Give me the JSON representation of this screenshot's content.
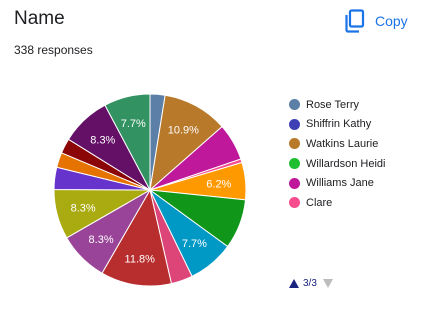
{
  "header": {
    "title": "Name",
    "responses": "338 responses",
    "copy_label": "Copy"
  },
  "legend": {
    "items": [
      {
        "label": "Rose Terry",
        "color": "#5b7fa6"
      },
      {
        "label": "Shiffrin Kathy",
        "color": "#3f3fb5"
      },
      {
        "label": "Watkins Laurie",
        "color": "#b8792a"
      },
      {
        "label": "Willardson Heidi",
        "color": "#1fbf2f"
      },
      {
        "label": "Williams Jane",
        "color": "#c0189a"
      },
      {
        "label": "Clare",
        "color": "#f74d8f"
      }
    ],
    "page_label": "3/3"
  },
  "chart_data": {
    "type": "pie",
    "slices": [
      {
        "value": 2.5,
        "color": "#5b7fa6"
      },
      {
        "value": 10.9,
        "label": "10.9%",
        "color": "#b8792a"
      },
      {
        "value": 6.2,
        "color": "#c0189a"
      },
      {
        "value": 0.6,
        "color": "#f74d8f"
      },
      {
        "value": 6.2,
        "label": "6.2%",
        "color": "#ff9900"
      },
      {
        "value": 8.3,
        "color": "#109618"
      },
      {
        "value": 7.7,
        "label": "7.7%",
        "color": "#0099c6"
      },
      {
        "value": 3.6,
        "color": "#dd4477"
      },
      {
        "value": 11.8,
        "label": "11.8%",
        "color": "#b82e2e"
      },
      {
        "value": 8.3,
        "label": "8.3%",
        "color": "#994499"
      },
      {
        "value": 8.3,
        "label": "8.3%",
        "color": "#aaaa11"
      },
      {
        "value": 3.7,
        "color": "#6633cc"
      },
      {
        "value": 2.5,
        "color": "#e67300"
      },
      {
        "value": 2.5,
        "color": "#8b0707"
      },
      {
        "value": 8.3,
        "label": "8.3%",
        "color": "#651067"
      },
      {
        "value": 7.7,
        "label": "7.7%",
        "color": "#329262"
      }
    ]
  }
}
